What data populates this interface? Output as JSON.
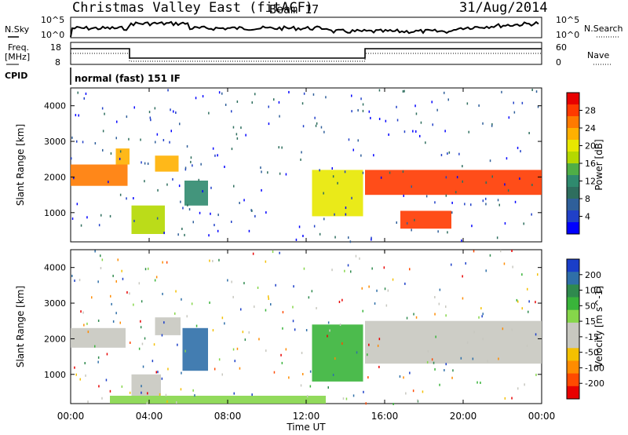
{
  "header": {
    "station": "Christmas Valley East (fitACF)",
    "beam": "Beam 17",
    "date": "31/Aug/2014"
  },
  "top_strips": {
    "nsky_label": "N.Sky",
    "nsky_ticks": [
      "10^5",
      "10^0"
    ],
    "nsearch_label": "N.Search",
    "nsearch_ticks": [
      "10^5",
      "10^0"
    ],
    "freq_label_line1": "Freq.",
    "freq_label_line2": "[MHz]",
    "freq_ticks": [
      "18",
      "8"
    ],
    "nave_label": "Nave",
    "nave_ticks": [
      "60",
      "0"
    ],
    "cpid_label": "CPID",
    "cpid_value": "normal (fast) 151 IF"
  },
  "chart_data": [
    {
      "type": "heatmap",
      "panel": "power",
      "ylabel": "Slant Range [km]",
      "xlabel": "",
      "colorbar_label": "Power [dB]",
      "colorbar_ticks": [
        "28",
        "24",
        "20",
        "16",
        "12",
        "8",
        "4"
      ],
      "colorbar_colors": [
        "#e80000",
        "#ff3a00",
        "#ff7a00",
        "#ffb000",
        "#e8e800",
        "#b4d800",
        "#4fae46",
        "#2f8a6e",
        "#2e6e5e",
        "#2f5f9a",
        "#2040c8",
        "#0000ff"
      ],
      "yticks": [
        "4000",
        "3000",
        "2000",
        "1000"
      ],
      "ylim": [
        180,
        4500
      ],
      "xlim": [
        0,
        24
      ],
      "features": [
        {
          "t0": 0.0,
          "t1": 2.9,
          "r0": 1750,
          "r1": 2350,
          "level": 25
        },
        {
          "t0": 2.3,
          "t1": 3.0,
          "r0": 2350,
          "r1": 2800,
          "level": 22
        },
        {
          "t0": 4.3,
          "t1": 5.5,
          "r0": 2150,
          "r1": 2600,
          "level": 22
        },
        {
          "t0": 5.8,
          "t1": 7.0,
          "r0": 1200,
          "r1": 1900,
          "level": 12
        },
        {
          "t0": 3.1,
          "t1": 4.8,
          "r0": 400,
          "r1": 1200,
          "level": 16
        },
        {
          "t0": 12.3,
          "t1": 14.9,
          "r0": 900,
          "r1": 2200,
          "level": 20
        },
        {
          "t0": 15.0,
          "t1": 24.0,
          "r0": 1500,
          "r1": 2200,
          "level": 26
        },
        {
          "t0": 16.8,
          "t1": 19.4,
          "r0": 550,
          "r1": 1050,
          "level": 28
        }
      ]
    },
    {
      "type": "heatmap",
      "panel": "velocity",
      "ylabel": "Slant Range [km]",
      "xlabel": "Time UT",
      "colorbar_label": "Velocity [m s^-1]",
      "colorbar_ticks": [
        "200",
        "100",
        "50",
        "15",
        "-15",
        "-50",
        "-100",
        "-200"
      ],
      "colorbar_colors": [
        "#1a3ec8",
        "#2f6fa8",
        "#2f8a4e",
        "#39b43a",
        "#86d64a",
        "#c8c8c0",
        "#c8c8c0",
        "#f4c000",
        "#ff8c00",
        "#ff4a00",
        "#e80000"
      ],
      "yticks": [
        "4000",
        "3000",
        "2000",
        "1000"
      ],
      "xticks": [
        "00:00",
        "04:00",
        "08:00",
        "12:00",
        "16:00",
        "20:00",
        "00:00"
      ],
      "ylim": [
        180,
        4500
      ],
      "xlim": [
        0,
        24
      ],
      "features": [
        {
          "t0": 0.0,
          "t1": 2.8,
          "r0": 1750,
          "r1": 2300,
          "velocity": 0
        },
        {
          "t0": 4.3,
          "t1": 5.6,
          "r0": 2100,
          "r1": 2600,
          "velocity": 0
        },
        {
          "t0": 5.7,
          "t1": 7.0,
          "r0": 1100,
          "r1": 2300,
          "velocity": 80
        },
        {
          "t0": 3.1,
          "t1": 4.6,
          "r0": 400,
          "r1": 1000,
          "velocity": 0
        },
        {
          "t0": 12.3,
          "t1": 14.9,
          "r0": 800,
          "r1": 2400,
          "velocity": 40
        },
        {
          "t0": 15.0,
          "t1": 24.0,
          "r0": 1300,
          "r1": 2500,
          "velocity": 0
        },
        {
          "t0": 2.0,
          "t1": 13.0,
          "r0": 180,
          "r1": 400,
          "velocity": 30
        }
      ]
    }
  ]
}
